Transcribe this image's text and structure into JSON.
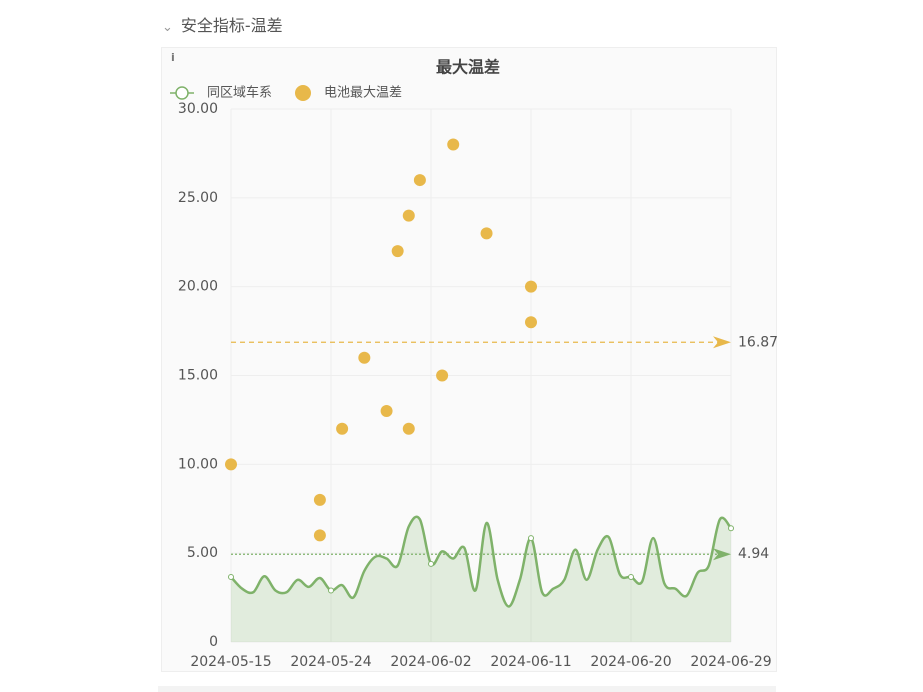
{
  "header": {
    "title": "安全指标-温差"
  },
  "chart_data": {
    "type": "scatter",
    "title": "最大温差",
    "series": [
      {
        "name": "同区域车系",
        "type": "line",
        "color": "#7fb26a",
        "x": [
          "2024-05-15",
          "2024-05-16",
          "2024-05-17",
          "2024-05-18",
          "2024-05-19",
          "2024-05-20",
          "2024-05-21",
          "2024-05-22",
          "2024-05-23",
          "2024-05-24",
          "2024-05-25",
          "2024-05-26",
          "2024-05-27",
          "2024-05-28",
          "2024-05-29",
          "2024-05-30",
          "2024-05-31",
          "2024-06-01",
          "2024-06-02",
          "2024-06-03",
          "2024-06-04",
          "2024-06-05",
          "2024-06-06",
          "2024-06-07",
          "2024-06-08",
          "2024-06-09",
          "2024-06-10",
          "2024-06-11",
          "2024-06-12",
          "2024-06-13",
          "2024-06-14",
          "2024-06-15",
          "2024-06-16",
          "2024-06-17",
          "2024-06-18",
          "2024-06-19",
          "2024-06-20",
          "2024-06-21",
          "2024-06-22",
          "2024-06-23",
          "2024-06-24",
          "2024-06-25",
          "2024-06-26",
          "2024-06-27",
          "2024-06-28",
          "2024-06-29"
        ],
        "values": [
          3.66,
          3.0,
          2.8,
          3.7,
          2.9,
          2.8,
          3.5,
          3.1,
          3.6,
          2.9,
          3.2,
          2.5,
          4.0,
          4.8,
          4.7,
          4.3,
          6.5,
          6.9,
          4.4,
          5.1,
          4.7,
          5.3,
          2.9,
          6.7,
          3.5,
          2.0,
          3.5,
          5.85,
          2.8,
          3.0,
          3.5,
          5.2,
          3.5,
          5.2,
          5.9,
          3.8,
          3.66,
          3.4,
          5.85,
          3.3,
          3.0,
          2.6,
          3.9,
          4.3,
          6.9,
          6.4
        ],
        "markline": 4.94
      },
      {
        "name": "电池最大温差",
        "type": "scatter",
        "color": "#e8b84a",
        "x": [
          "2024-05-15",
          "2024-05-23",
          "2024-05-23",
          "2024-05-25",
          "2024-05-27",
          "2024-05-29",
          "2024-05-30",
          "2024-05-31",
          "2024-05-31",
          "2024-06-01",
          "2024-06-03",
          "2024-06-04",
          "2024-06-07",
          "2024-06-11",
          "2024-06-11"
        ],
        "values": [
          10,
          8,
          6,
          12,
          16,
          13,
          22,
          12,
          24,
          26,
          15,
          28,
          23,
          20,
          18
        ],
        "markline": 16.87
      }
    ],
    "xlim": [
      "2024-05-15",
      "2024-06-29"
    ],
    "xticks": [
      "2024-05-15",
      "2024-05-24",
      "2024-06-02",
      "2024-06-11",
      "2024-06-20",
      "2024-06-29"
    ],
    "ylim": [
      0,
      30
    ],
    "yticks": [
      0,
      {
        "value": 5,
        "label": "5.00"
      },
      {
        "value": 10,
        "label": "10.00"
      },
      {
        "value": 15,
        "label": "15.00"
      },
      {
        "value": 20,
        "label": "20.00"
      },
      {
        "value": 25,
        "label": "25.00"
      },
      {
        "value": 30,
        "label": "30.00"
      }
    ],
    "grid": true
  }
}
